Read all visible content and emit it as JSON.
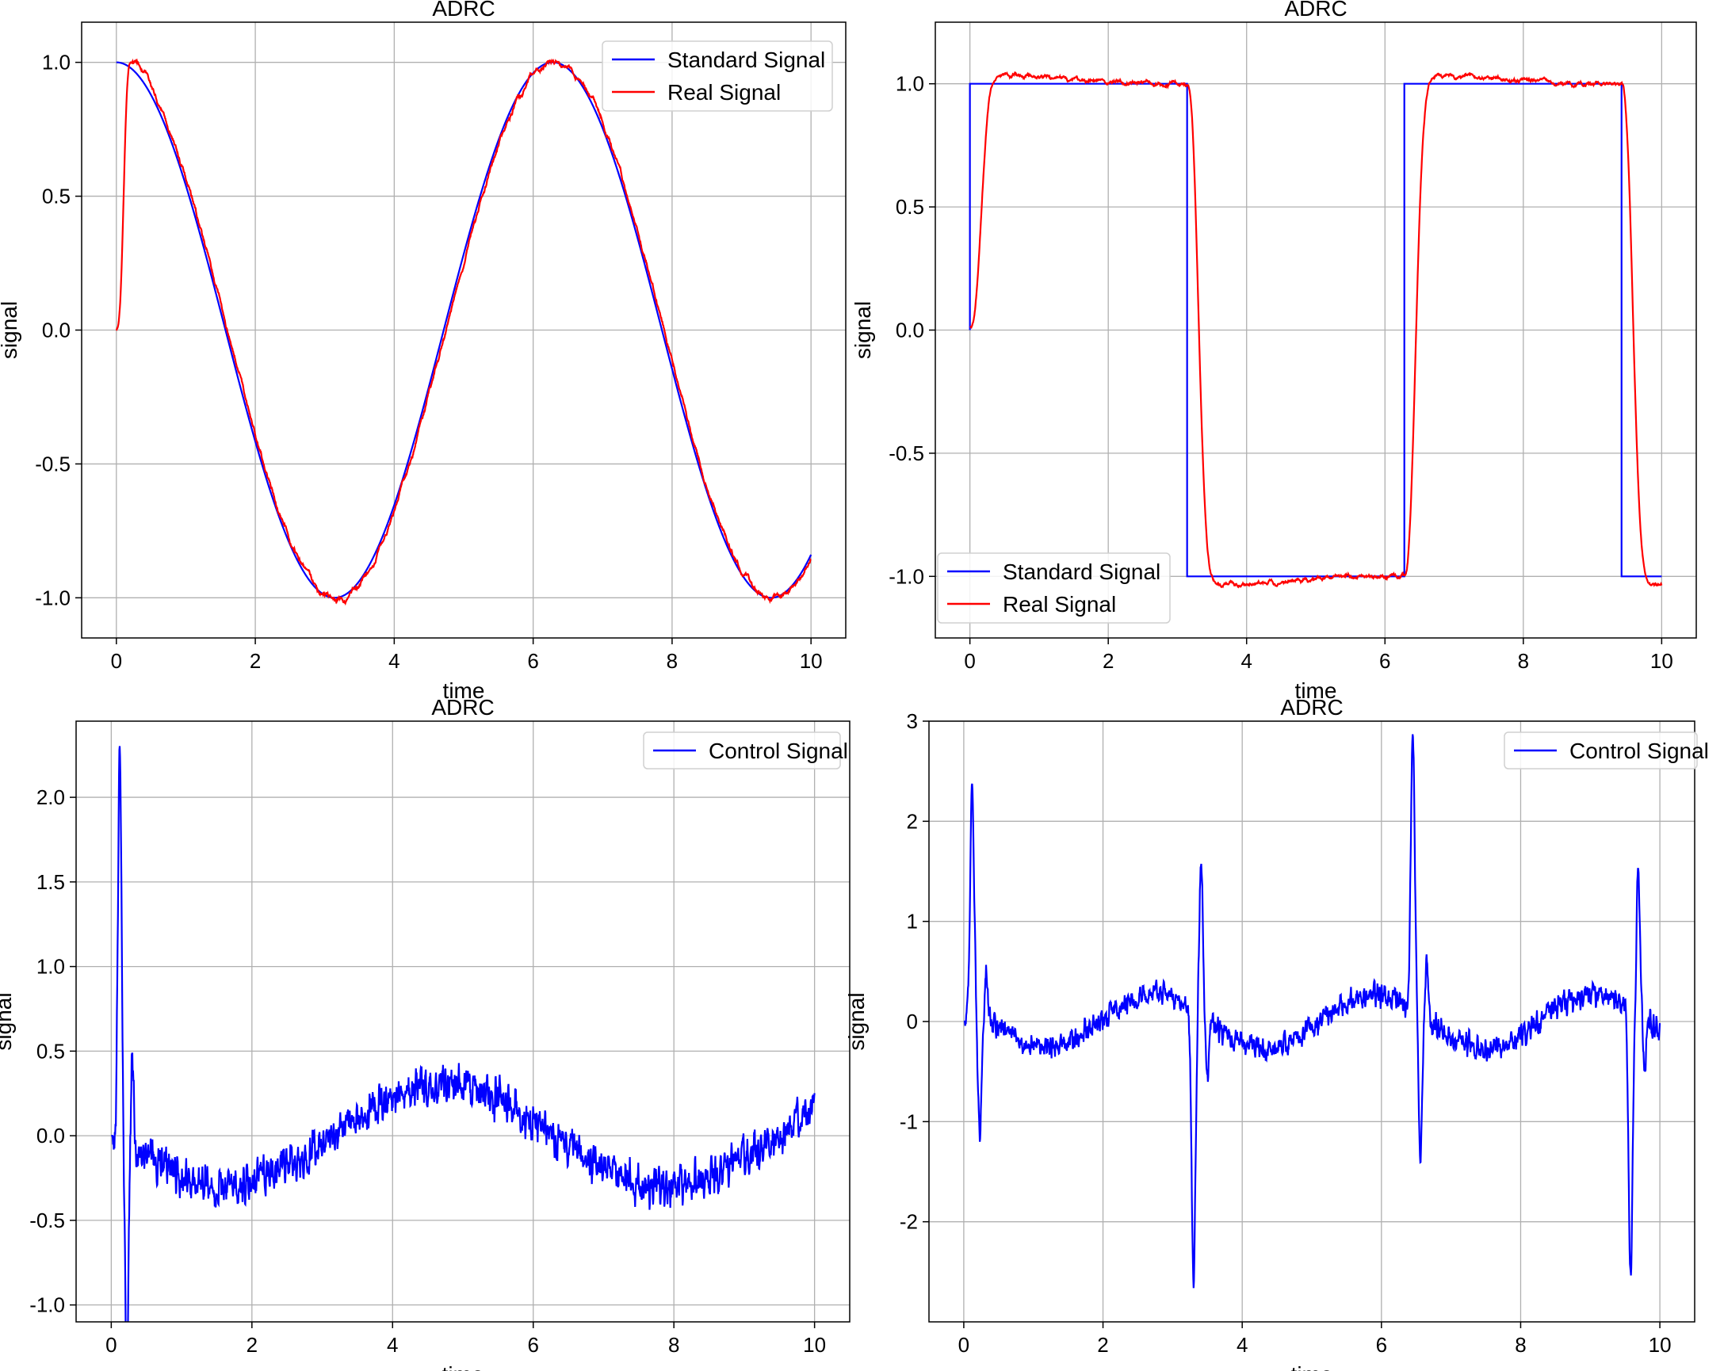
{
  "chart_data": [
    {
      "type": "line",
      "title": "ADRC",
      "xlabel": "time",
      "ylabel": "signal",
      "xlim": [
        -0.5,
        10.5
      ],
      "ylim": [
        -1.15,
        1.15
      ],
      "xticks": [
        0,
        2,
        4,
        6,
        8,
        10
      ],
      "yticks": [
        -1.0,
        -0.5,
        0.0,
        0.5,
        1.0
      ],
      "ytick_labels": [
        "-1.0",
        "-0.5",
        "0.0",
        "0.5",
        "1.0"
      ],
      "grid": true,
      "legend": "top-right",
      "series": [
        {
          "name": "Standard Signal",
          "color": "#0000ff",
          "kind": "cos",
          "amplitude": 1.0
        },
        {
          "name": "Real Signal",
          "color": "#ff0000",
          "kind": "tracked_cos",
          "rise_time": 0.12,
          "overshoot": 0.04,
          "noise": 0.015
        }
      ]
    },
    {
      "type": "line",
      "title": "ADRC",
      "xlabel": "time",
      "ylabel": "signal",
      "xlim": [
        -0.5,
        10.5
      ],
      "ylim": [
        -1.25,
        1.25
      ],
      "xticks": [
        0,
        2,
        4,
        6,
        8,
        10
      ],
      "yticks": [
        -1.0,
        -0.5,
        0.0,
        0.5,
        1.0
      ],
      "ytick_labels": [
        "-1.0",
        "-0.5",
        "0.0",
        "0.5",
        "1.0"
      ],
      "grid": true,
      "legend": "bottom-left",
      "series": [
        {
          "name": "Standard Signal",
          "color": "#0000ff",
          "kind": "square",
          "switch_times": [
            0,
            3.14,
            6.28,
            9.42
          ]
        },
        {
          "name": "Real Signal",
          "color": "#ff0000",
          "kind": "tracked_square",
          "rise_time": 0.2,
          "overshoot": 0.1,
          "noise": 0.012
        }
      ]
    },
    {
      "type": "line",
      "title": "ADRC",
      "xlabel": "time",
      "ylabel": "signal",
      "xlim": [
        -0.5,
        10.5
      ],
      "ylim": [
        -1.1,
        2.45
      ],
      "xticks": [
        0,
        2,
        4,
        6,
        8,
        10
      ],
      "yticks": [
        -1.0,
        -0.5,
        0.0,
        0.5,
        1.0,
        1.5,
        2.0
      ],
      "ytick_labels": [
        "-1.0",
        "-0.5",
        "0.0",
        "0.5",
        "1.0",
        "1.5",
        "2.0"
      ],
      "grid": true,
      "legend": "top-right",
      "series": [
        {
          "name": "Control Signal",
          "color": "#0000ff",
          "kind": "control_sine",
          "peak": 2.31,
          "min": -0.97,
          "drift": 0.3,
          "noise": 0.08
        }
      ]
    },
    {
      "type": "line",
      "title": "ADRC",
      "xlabel": "time",
      "ylabel": "signal",
      "xlim": [
        -0.5,
        10.5
      ],
      "ylim": [
        -3.0,
        3.0
      ],
      "xticks": [
        0,
        2,
        4,
        6,
        8,
        10
      ],
      "yticks": [
        -2,
        -1,
        0,
        1,
        2,
        3
      ],
      "ytick_labels": [
        "-2",
        "-1",
        "0",
        "1",
        "2",
        "3"
      ],
      "grid": true,
      "legend": "top-right",
      "series": [
        {
          "name": "Control Signal",
          "color": "#0000ff",
          "kind": "control_square",
          "spikes": [
            [
              0.12,
              2.3
            ],
            [
              3.3,
              -2.7
            ],
            [
              6.45,
              2.73
            ],
            [
              9.58,
              -2.67
            ]
          ],
          "drift": 0.3,
          "noise": 0.08
        }
      ]
    }
  ]
}
